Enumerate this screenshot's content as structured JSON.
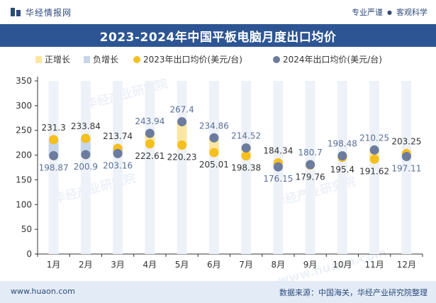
{
  "header": {
    "logo_text": "华经情报网",
    "slogan_1": "专业严谨",
    "slogan_2": "客观科学"
  },
  "title": "2023-2024年中国平板电脑月度出口均价",
  "footer": {
    "url": "www.huaon.com",
    "source": "数据来源：中国海关，华经产业研究院整理"
  },
  "watermarks": [
    "华经产业研究院",
    "华经产业研究院",
    "华经产业研究院",
    "www.huaon.com"
  ],
  "colors": {
    "title_bg": "#2d5593",
    "positive": "#fbe7a3",
    "negative": "#c9d5e8",
    "series_2023": "#f5bf1d",
    "series_2024": "#6b7c9e"
  },
  "chart_data": {
    "type": "line",
    "categories": [
      "1月",
      "2月",
      "3月",
      "4月",
      "5月",
      "6月",
      "7月",
      "8月",
      "9月",
      "10月",
      "11月",
      "12月"
    ],
    "legend": [
      "正增长",
      "负增长",
      "2023年出口均价(美元/台)",
      "2024年出口均价(美元/台)"
    ],
    "series": [
      {
        "name": "2023年出口均价(美元/台)",
        "values": [
          231.3,
          233.84,
          213.74,
          222.61,
          220.23,
          205.01,
          198.38,
          184.34,
          179.76,
          195.4,
          191.62,
          203.25
        ]
      },
      {
        "name": "2024年出口均价(美元/台)",
        "values": [
          198.87,
          200.9,
          203.16,
          243.94,
          267.4,
          234.86,
          214.52,
          176.15,
          180.7,
          198.48,
          210.25,
          197.11
        ]
      }
    ],
    "y_ticks": [
      0,
      50,
      100,
      150,
      200,
      250,
      300,
      350
    ],
    "ylim": [
      0,
      350
    ],
    "grid": false,
    "legend_position": "top"
  }
}
